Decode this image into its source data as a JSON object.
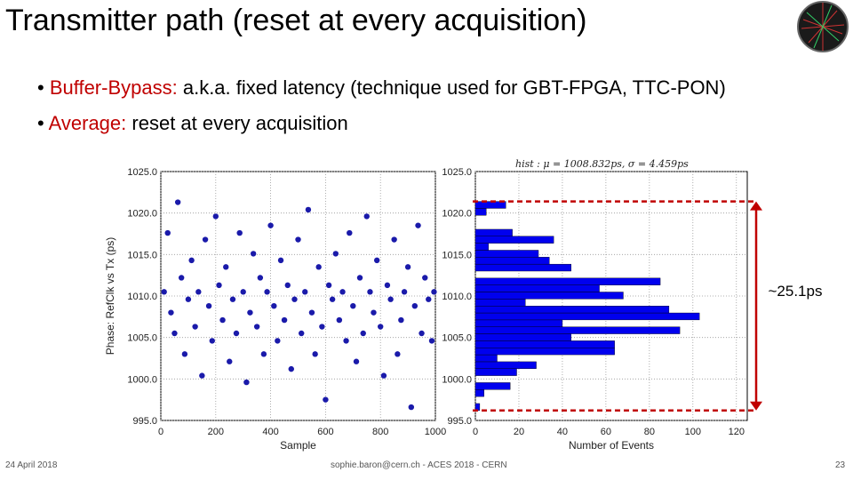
{
  "title": "Transmitter path (reset at every acquisition)",
  "bullets": [
    {
      "label": "Buffer-Bypass:",
      "text": "a.k.a. fixed latency (technique used for GBT-FPGA, TTC-PON)"
    },
    {
      "label": "Average:",
      "text": "reset at every acquisition"
    }
  ],
  "footer": {
    "date": "24 April 2018",
    "center": "sophie.baron@cern.ch - ACES 2018 - CERN",
    "page": "23"
  },
  "chart_data": [
    {
      "type": "scatter",
      "xlabel": "Sample",
      "ylabel": "Phase: RefClk vs Tx (ps)",
      "color": "#1a1aaa",
      "grid": true,
      "xlim": [
        0,
        1000
      ],
      "xticks": [
        0,
        200,
        400,
        600,
        800,
        1000
      ],
      "ylim": [
        995,
        1025
      ],
      "yticks": [
        {
          "value": 995,
          "label": "995.0"
        },
        {
          "value": 1000,
          "label": "1000.0"
        },
        {
          "value": 1005,
          "label": "1005.0"
        },
        {
          "value": 1010,
          "label": "1010.0"
        },
        {
          "value": 1015,
          "label": "1015.0"
        },
        {
          "value": 1020,
          "label": "1020.0"
        },
        {
          "value": 1025,
          "label": "1025.0"
        }
      ],
      "x": [
        12,
        25,
        37,
        50,
        62,
        75,
        87,
        100,
        112,
        125,
        137,
        150,
        162,
        175,
        187,
        200,
        212,
        225,
        237,
        250,
        262,
        275,
        287,
        300,
        312,
        325,
        337,
        350,
        362,
        375,
        387,
        400,
        412,
        425,
        437,
        450,
        462,
        475,
        487,
        500,
        512,
        525,
        537,
        550,
        562,
        575,
        587,
        600,
        612,
        625,
        637,
        650,
        662,
        675,
        687,
        700,
        712,
        725,
        737,
        750,
        762,
        775,
        787,
        800,
        812,
        825,
        837,
        850,
        862,
        875,
        887,
        900,
        912,
        925,
        937,
        950,
        962,
        975,
        987,
        995
      ],
      "y": [
        1010.5,
        1017.6,
        1008.0,
        1005.5,
        1021.3,
        1012.2,
        1003.0,
        1009.6,
        1014.3,
        1006.3,
        1010.5,
        1000.4,
        1016.8,
        1008.8,
        1004.6,
        1019.6,
        1011.3,
        1007.1,
        1013.5,
        1002.1,
        1009.6,
        1005.5,
        1017.6,
        1010.5,
        999.6,
        1008.0,
        1015.1,
        1006.3,
        1012.2,
        1003.0,
        1010.5,
        1018.5,
        1008.8,
        1004.6,
        1014.3,
        1007.1,
        1011.3,
        1001.2,
        1009.6,
        1016.8,
        1005.5,
        1010.5,
        1020.4,
        1008.0,
        1003.0,
        1013.5,
        1006.3,
        997.5,
        1011.3,
        1009.6,
        1015.1,
        1007.1,
        1010.5,
        1004.6,
        1017.6,
        1008.8,
        1002.1,
        1012.2,
        1005.5,
        1019.6,
        1010.5,
        1008.0,
        1014.3,
        1006.3,
        1000.4,
        1011.3,
        1009.6,
        1016.8,
        1003.0,
        1007.1,
        1010.5,
        1013.5,
        996.6,
        1008.8,
        1018.5,
        1005.5,
        1012.2,
        1009.6,
        1004.6,
        1010.5
      ]
    },
    {
      "type": "histogram",
      "orientation": "horizontal",
      "title": "hist : μ = 1008.832ps, σ = 4.459ps",
      "annotation": "~25.1ps",
      "xlabel": "Number of Events",
      "color": "#0000ee",
      "grid": true,
      "xlim": [
        0,
        125
      ],
      "xticks": [
        0,
        20,
        40,
        60,
        80,
        100,
        120
      ],
      "ylim": [
        995,
        1025
      ],
      "yticks": [
        {
          "value": 995,
          "label": "995.0"
        },
        {
          "value": 1000,
          "label": "1000.0"
        },
        {
          "value": 1005,
          "label": "1005.0"
        },
        {
          "value": 1010,
          "label": "1010.0"
        },
        {
          "value": 1015,
          "label": "1015.0"
        },
        {
          "value": 1020,
          "label": "1020.0"
        },
        {
          "value": 1025,
          "label": "1025.0"
        }
      ],
      "bins": [
        996.2,
        997.04,
        997.88,
        998.72,
        999.56,
        1000.4,
        1001.24,
        1002.08,
        1002.92,
        1003.76,
        1004.6,
        1005.44,
        1006.28,
        1007.12,
        1007.96,
        1008.8,
        1009.64,
        1010.48,
        1011.32,
        1012.16,
        1013.0,
        1013.84,
        1014.68,
        1015.52,
        1016.36,
        1017.2,
        1018.04,
        1018.88,
        1019.72,
        1020.56,
        1021.4
      ],
      "counts": [
        2,
        0,
        4,
        16,
        0,
        19,
        28,
        10,
        64,
        64,
        44,
        94,
        40,
        103,
        89,
        23,
        68,
        57,
        85,
        0,
        44,
        34,
        29,
        6,
        36,
        17,
        0,
        0,
        5,
        14
      ]
    }
  ]
}
